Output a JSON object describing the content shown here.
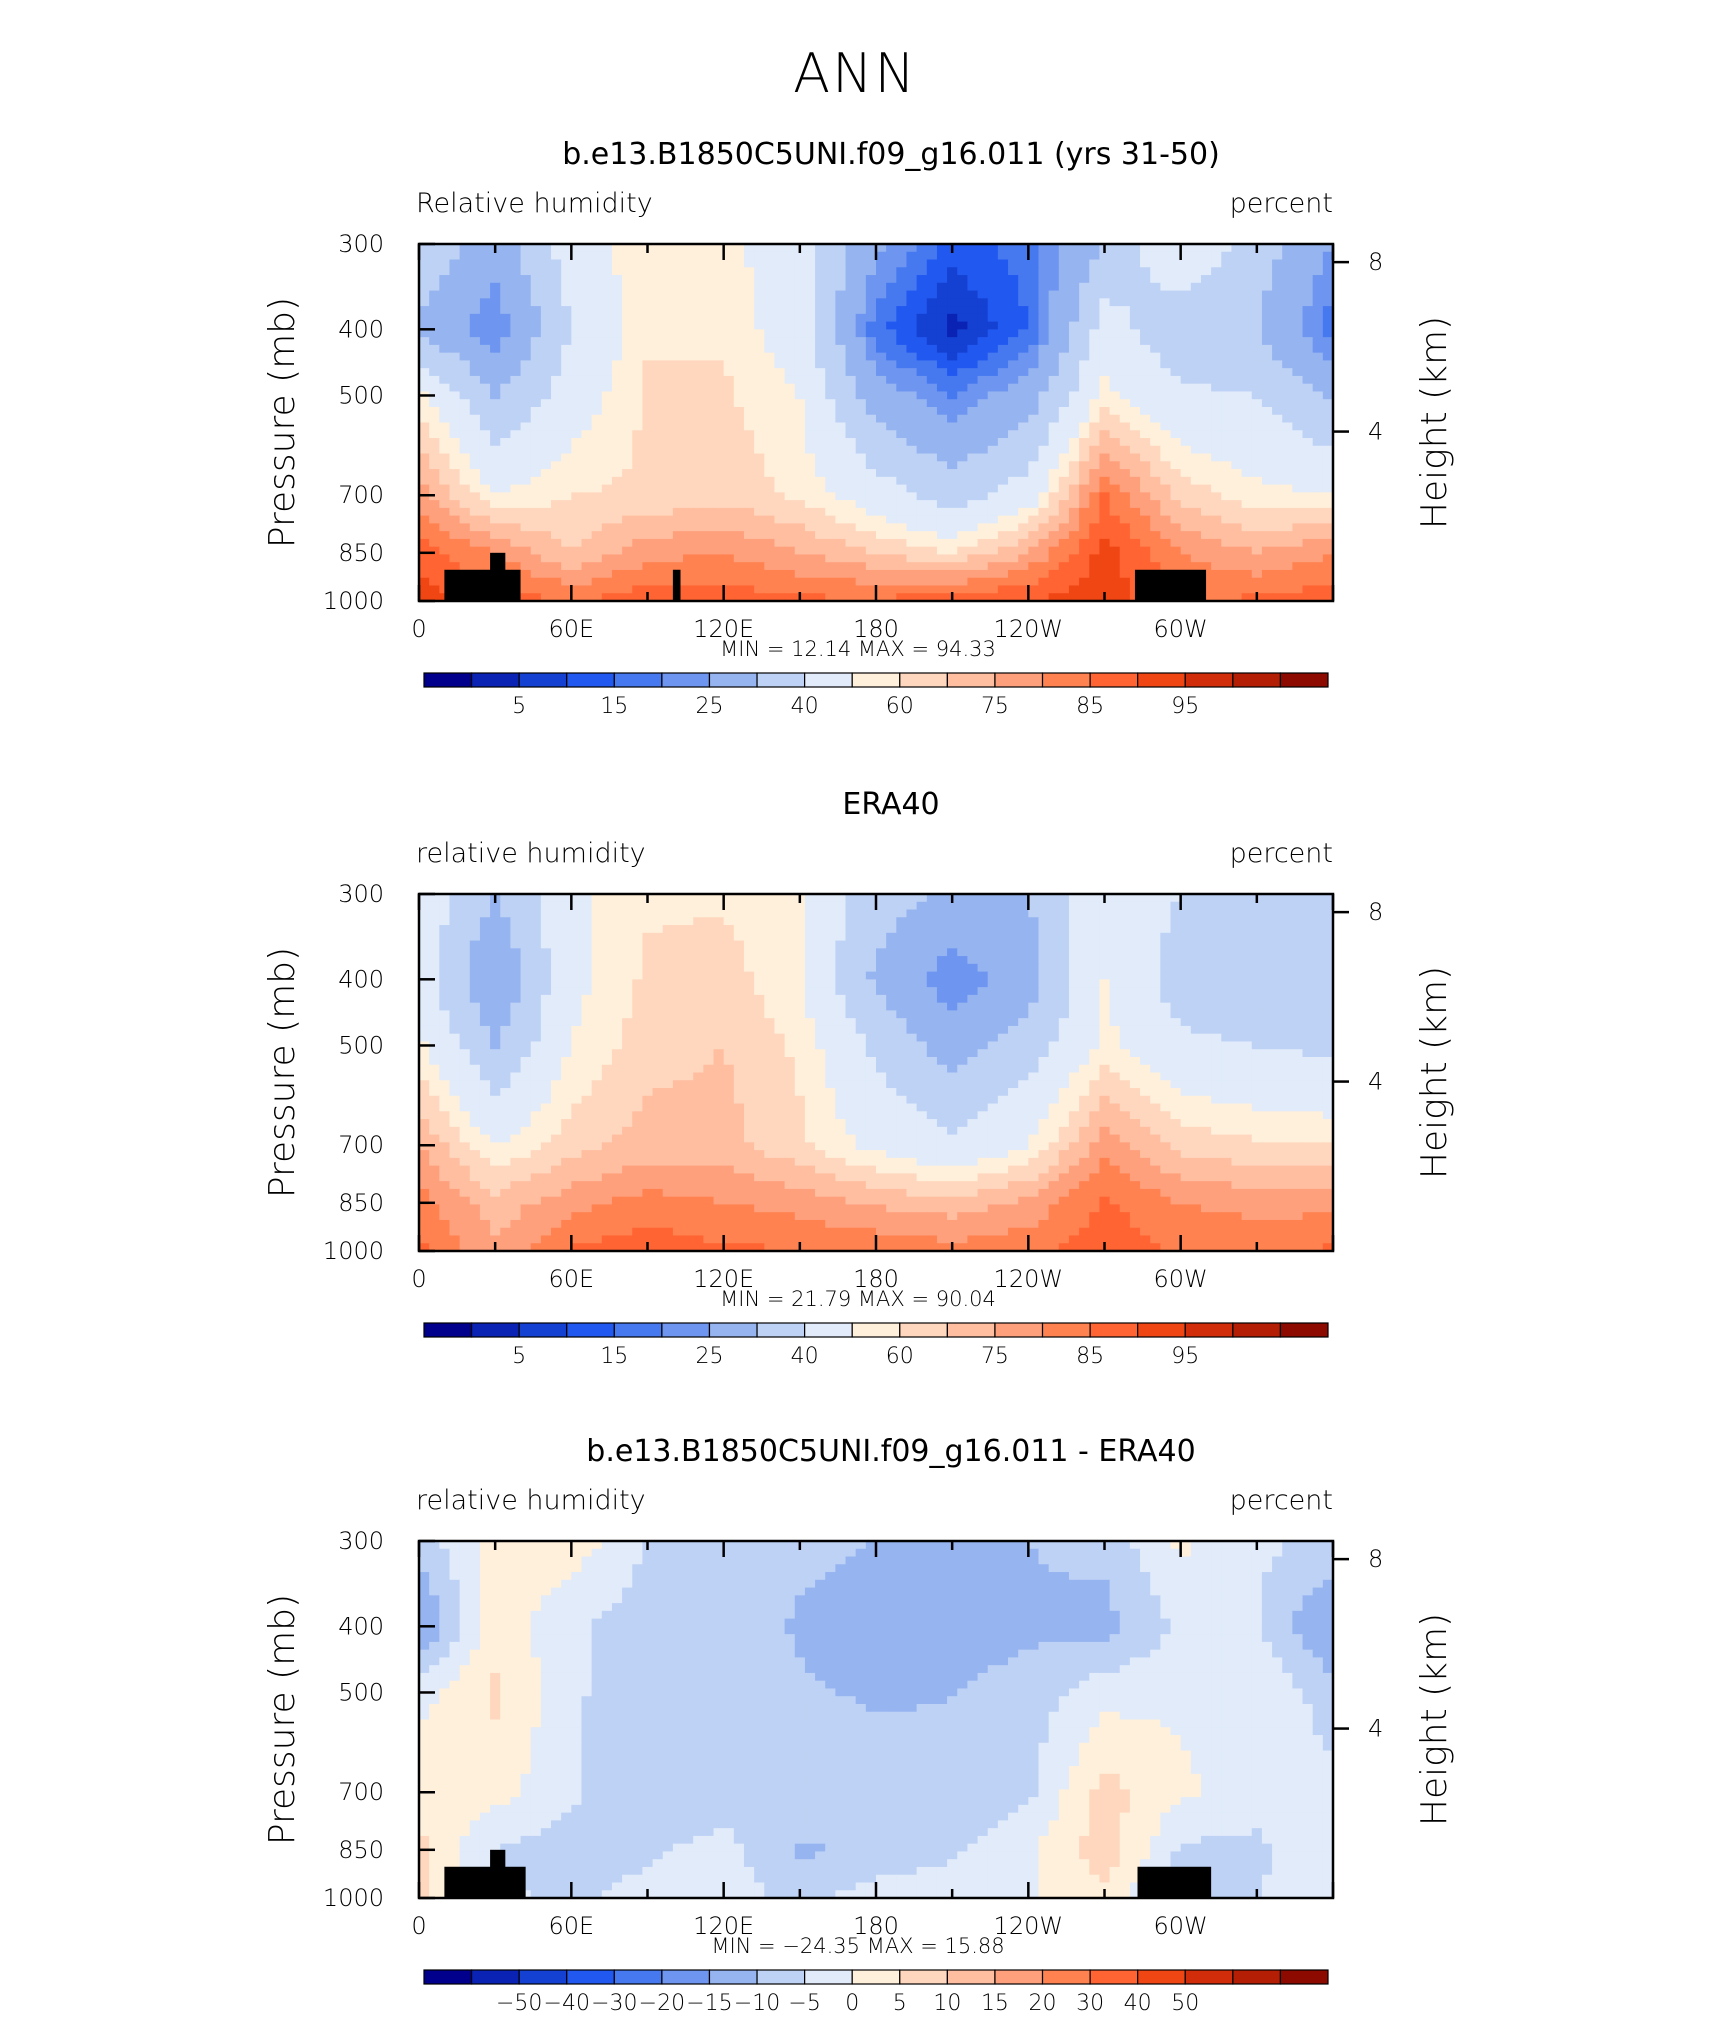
{
  "figure": {
    "title": "ANN"
  },
  "chart_data": [
    {
      "type": "heatmap",
      "title": "b.e13.B1850C5UNI.f09_g16.011 (yrs 31-50)",
      "left_label": "Relative humidity",
      "right_label": "percent",
      "ylabel": "Pressure (mb)",
      "ylabel_right": "Height (km)",
      "x_ticks": [
        "0",
        "60E",
        "120E",
        "180",
        "120W",
        "60W"
      ],
      "y_ticks": [
        "300",
        "400",
        "500",
        "700",
        "850",
        "1000"
      ],
      "y_right_ticks": [
        "8",
        "4"
      ],
      "stats": {
        "min_label": "MIN =",
        "min": "12.14",
        "max_label": "MAX =",
        "max": "94.33"
      },
      "colorbar": {
        "labels": [
          "5",
          "15",
          "25",
          "40",
          "60",
          "75",
          "85",
          "95"
        ],
        "colors": [
          "#00008c",
          "#0a23b4",
          "#1441d2",
          "#2158f0",
          "#4678f0",
          "#6e96f0",
          "#96b4f0",
          "#bed2f5",
          "#e1ebfa",
          "#fff0dc",
          "#ffd7be",
          "#ffbea0",
          "#ffa07d",
          "#ff8250",
          "#ff6432",
          "#f04614",
          "#d22d0a",
          "#b41e05",
          "#8c0a00"
        ]
      },
      "levels": [
        5,
        10,
        15,
        20,
        25,
        30,
        40,
        50,
        60,
        65,
        70,
        75,
        80,
        85,
        90,
        95,
        100,
        105
      ],
      "nx": 13,
      "ny": 6,
      "x_range": [
        0,
        360
      ],
      "p_levels": [
        300,
        400,
        500,
        700,
        850,
        1000
      ],
      "grid": [
        [
          48,
          35,
          55,
          65,
          62,
          55,
          32,
          18,
          22,
          40,
          60,
          45,
          30
        ],
        [
          38,
          25,
          50,
          64,
          64,
          55,
          22,
          8,
          20,
          55,
          42,
          40,
          22
        ],
        [
          62,
          40,
          55,
          66,
          66,
          60,
          35,
          25,
          35,
          62,
          52,
          50,
          38
        ],
        [
          78,
          60,
          65,
          66,
          68,
          64,
          55,
          45,
          55,
          85,
          68,
          62,
          60
        ],
        [
          88,
          80,
          70,
          78,
          80,
          75,
          70,
          65,
          75,
          92,
          80,
          75,
          80
        ],
        [
          92,
          88,
          85,
          88,
          88,
          86,
          86,
          88,
          90,
          93,
          85,
          86,
          88
        ]
      ],
      "terrain": [
        {
          "x": [
            10,
            40
          ],
          "p_top": 900
        },
        {
          "x": [
            28,
            34
          ],
          "p_top": 850
        },
        {
          "x": [
            100,
            103
          ],
          "p_top": 900
        },
        {
          "x": [
            282,
            310
          ],
          "p_top": 900
        }
      ]
    },
    {
      "type": "heatmap",
      "title": "ERA40",
      "left_label": "relative humidity",
      "right_label": "percent",
      "ylabel": "Pressure (mb)",
      "ylabel_right": "Height (km)",
      "x_ticks": [
        "0",
        "60E",
        "120E",
        "180",
        "120W",
        "60W"
      ],
      "y_ticks": [
        "300",
        "400",
        "500",
        "700",
        "850",
        "1000"
      ],
      "y_right_ticks": [
        "8",
        "4"
      ],
      "stats": {
        "min_label": "MIN =",
        "min": "21.79",
        "max_label": "MAX =",
        "max": "90.04"
      },
      "colorbar": {
        "labels": [
          "5",
          "15",
          "25",
          "40",
          "60",
          "75",
          "85",
          "95"
        ],
        "colors": [
          "#00008c",
          "#0a23b4",
          "#1441d2",
          "#2158f0",
          "#4678f0",
          "#6e96f0",
          "#96b4f0",
          "#bed2f5",
          "#e1ebfa",
          "#fff0dc",
          "#ffd7be",
          "#ffbea0",
          "#ffa07d",
          "#ff8250",
          "#ff6432",
          "#f04614",
          "#d22d0a",
          "#b41e05",
          "#8c0a00"
        ]
      },
      "levels": [
        5,
        10,
        15,
        20,
        25,
        30,
        40,
        50,
        60,
        65,
        70,
        75,
        80,
        85,
        90,
        95,
        100,
        105
      ],
      "nx": 13,
      "ny": 6,
      "x_range": [
        0,
        360
      ],
      "p_levels": [
        300,
        400,
        500,
        700,
        850,
        1000
      ],
      "grid": [
        [
          58,
          40,
          58,
          64,
          64,
          60,
          45,
          38,
          40,
          58,
          50,
          40,
          42
        ],
        [
          55,
          30,
          58,
          66,
          68,
          60,
          38,
          25,
          35,
          60,
          45,
          40,
          40
        ],
        [
          62,
          40,
          60,
          68,
          70,
          64,
          48,
          35,
          45,
          62,
          52,
          50,
          48
        ],
        [
          75,
          60,
          68,
          72,
          72,
          66,
          58,
          52,
          60,
          78,
          68,
          66,
          65
        ],
        [
          82,
          72,
          78,
          82,
          80,
          78,
          74,
          72,
          76,
          86,
          80,
          78,
          78
        ],
        [
          86,
          76,
          86,
          88,
          86,
          85,
          84,
          82,
          84,
          88,
          84,
          84,
          86
        ]
      ],
      "terrain": []
    },
    {
      "type": "heatmap",
      "title": "b.e13.B1850C5UNI.f09_g16.011 - ERA40",
      "left_label": "relative humidity",
      "right_label": "percent",
      "ylabel": "Pressure (mb)",
      "ylabel_right": "Height (km)",
      "x_ticks": [
        "0",
        "60E",
        "120E",
        "180",
        "120W",
        "60W"
      ],
      "y_ticks": [
        "300",
        "400",
        "500",
        "700",
        "850",
        "1000"
      ],
      "y_right_ticks": [
        "8",
        "4"
      ],
      "stats": {
        "min_label": "MIN =",
        "min": "−24.35",
        "max_label": "MAX =",
        "max": "15.88"
      },
      "colorbar": {
        "labels": [
          "−50",
          "−40",
          "−30",
          "−20",
          "−15",
          "−10",
          "−5",
          "0",
          "5",
          "10",
          "15",
          "20",
          "30",
          "40",
          "50"
        ],
        "colors": [
          "#00008c",
          "#0a23b4",
          "#1441d2",
          "#2158f0",
          "#4678f0",
          "#6e96f0",
          "#96b4f0",
          "#bed2f5",
          "#e1ebfa",
          "#fff0dc",
          "#ffd7be",
          "#ffbea0",
          "#ffa07d",
          "#ff8250",
          "#ff6432",
          "#f04614",
          "#d22d0a",
          "#b41e05",
          "#8c0a00"
        ]
      },
      "levels": [
        -60,
        -50,
        -40,
        -30,
        -20,
        -15,
        -10,
        -5,
        0,
        5,
        10,
        15,
        20,
        30,
        40,
        50,
        60,
        70
      ],
      "nx": 13,
      "ny": 6,
      "x_range": [
        0,
        360
      ],
      "p_levels": [
        300,
        400,
        500,
        700,
        850,
        1000
      ],
      "grid": [
        [
          -8,
          2,
          3,
          -5,
          -6,
          -8,
          -10,
          -12,
          -10,
          -8,
          1,
          -4,
          -6
        ],
        [
          -16,
          3,
          -4,
          -8,
          -5,
          -11,
          -14,
          -13,
          -11,
          -12,
          -4,
          -5,
          -16
        ],
        [
          -2,
          6,
          -4,
          -9,
          -5,
          -9,
          -11,
          -10,
          -8,
          -2,
          -1,
          0,
          -8
        ],
        [
          4,
          2,
          -4,
          -10,
          -8,
          -5,
          -6,
          -9,
          -6,
          7,
          1,
          -3,
          -3
        ],
        [
          6,
          -5,
          -8,
          -6,
          -3,
          -11,
          -8,
          -6,
          -1,
          8,
          -6,
          -6,
          -1
        ],
        [
          7,
          -4,
          -6,
          -3,
          -3,
          -6,
          -3,
          -2,
          -1,
          4,
          -8,
          -5,
          -3
        ]
      ],
      "terrain": [
        {
          "x": [
            10,
            42
          ],
          "p_top": 900
        },
        {
          "x": [
            28,
            34
          ],
          "p_top": 850
        },
        {
          "x": [
            283,
            312
          ],
          "p_top": 900
        }
      ]
    }
  ]
}
